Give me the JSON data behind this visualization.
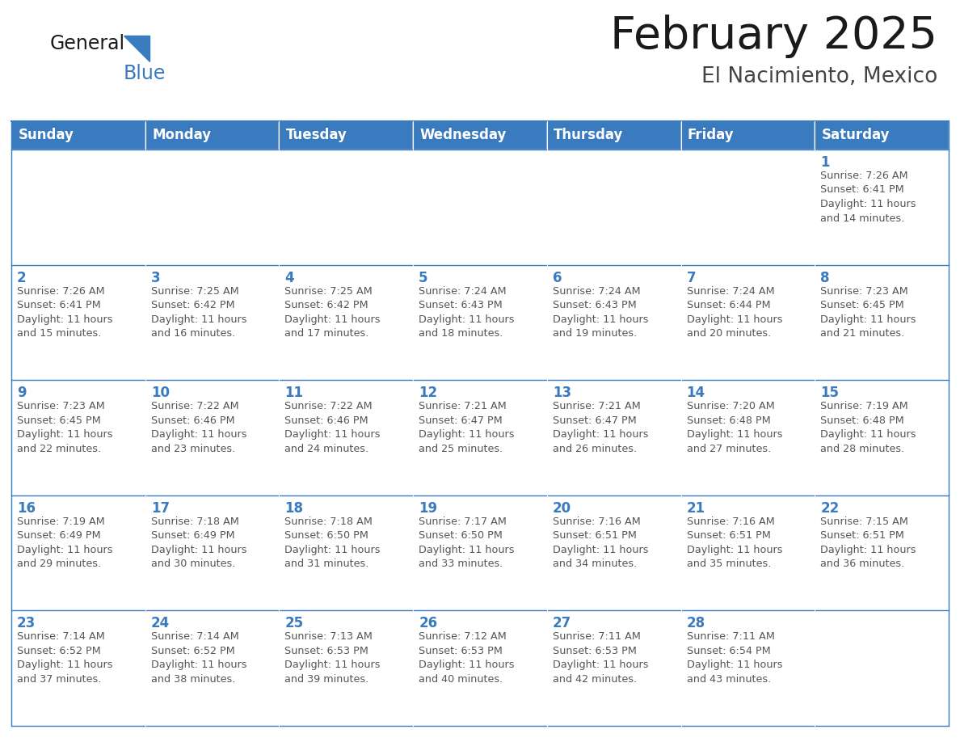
{
  "title": "February 2025",
  "subtitle": "El Nacimiento, Mexico",
  "header_bg_color": "#3a7abf",
  "header_text_color": "#ffffff",
  "cell_border_color": "#3a7abf",
  "row_separator_color": "#3a7abf",
  "day_number_color": "#3a7abf",
  "info_text_color": "#555555",
  "background_color": "#ffffff",
  "days_of_week": [
    "Sunday",
    "Monday",
    "Tuesday",
    "Wednesday",
    "Thursday",
    "Friday",
    "Saturday"
  ],
  "weeks": [
    [
      {
        "day": null,
        "info": null
      },
      {
        "day": null,
        "info": null
      },
      {
        "day": null,
        "info": null
      },
      {
        "day": null,
        "info": null
      },
      {
        "day": null,
        "info": null
      },
      {
        "day": null,
        "info": null
      },
      {
        "day": 1,
        "info": "Sunrise: 7:26 AM\nSunset: 6:41 PM\nDaylight: 11 hours\nand 14 minutes."
      }
    ],
    [
      {
        "day": 2,
        "info": "Sunrise: 7:26 AM\nSunset: 6:41 PM\nDaylight: 11 hours\nand 15 minutes."
      },
      {
        "day": 3,
        "info": "Sunrise: 7:25 AM\nSunset: 6:42 PM\nDaylight: 11 hours\nand 16 minutes."
      },
      {
        "day": 4,
        "info": "Sunrise: 7:25 AM\nSunset: 6:42 PM\nDaylight: 11 hours\nand 17 minutes."
      },
      {
        "day": 5,
        "info": "Sunrise: 7:24 AM\nSunset: 6:43 PM\nDaylight: 11 hours\nand 18 minutes."
      },
      {
        "day": 6,
        "info": "Sunrise: 7:24 AM\nSunset: 6:43 PM\nDaylight: 11 hours\nand 19 minutes."
      },
      {
        "day": 7,
        "info": "Sunrise: 7:24 AM\nSunset: 6:44 PM\nDaylight: 11 hours\nand 20 minutes."
      },
      {
        "day": 8,
        "info": "Sunrise: 7:23 AM\nSunset: 6:45 PM\nDaylight: 11 hours\nand 21 minutes."
      }
    ],
    [
      {
        "day": 9,
        "info": "Sunrise: 7:23 AM\nSunset: 6:45 PM\nDaylight: 11 hours\nand 22 minutes."
      },
      {
        "day": 10,
        "info": "Sunrise: 7:22 AM\nSunset: 6:46 PM\nDaylight: 11 hours\nand 23 minutes."
      },
      {
        "day": 11,
        "info": "Sunrise: 7:22 AM\nSunset: 6:46 PM\nDaylight: 11 hours\nand 24 minutes."
      },
      {
        "day": 12,
        "info": "Sunrise: 7:21 AM\nSunset: 6:47 PM\nDaylight: 11 hours\nand 25 minutes."
      },
      {
        "day": 13,
        "info": "Sunrise: 7:21 AM\nSunset: 6:47 PM\nDaylight: 11 hours\nand 26 minutes."
      },
      {
        "day": 14,
        "info": "Sunrise: 7:20 AM\nSunset: 6:48 PM\nDaylight: 11 hours\nand 27 minutes."
      },
      {
        "day": 15,
        "info": "Sunrise: 7:19 AM\nSunset: 6:48 PM\nDaylight: 11 hours\nand 28 minutes."
      }
    ],
    [
      {
        "day": 16,
        "info": "Sunrise: 7:19 AM\nSunset: 6:49 PM\nDaylight: 11 hours\nand 29 minutes."
      },
      {
        "day": 17,
        "info": "Sunrise: 7:18 AM\nSunset: 6:49 PM\nDaylight: 11 hours\nand 30 minutes."
      },
      {
        "day": 18,
        "info": "Sunrise: 7:18 AM\nSunset: 6:50 PM\nDaylight: 11 hours\nand 31 minutes."
      },
      {
        "day": 19,
        "info": "Sunrise: 7:17 AM\nSunset: 6:50 PM\nDaylight: 11 hours\nand 33 minutes."
      },
      {
        "day": 20,
        "info": "Sunrise: 7:16 AM\nSunset: 6:51 PM\nDaylight: 11 hours\nand 34 minutes."
      },
      {
        "day": 21,
        "info": "Sunrise: 7:16 AM\nSunset: 6:51 PM\nDaylight: 11 hours\nand 35 minutes."
      },
      {
        "day": 22,
        "info": "Sunrise: 7:15 AM\nSunset: 6:51 PM\nDaylight: 11 hours\nand 36 minutes."
      }
    ],
    [
      {
        "day": 23,
        "info": "Sunrise: 7:14 AM\nSunset: 6:52 PM\nDaylight: 11 hours\nand 37 minutes."
      },
      {
        "day": 24,
        "info": "Sunrise: 7:14 AM\nSunset: 6:52 PM\nDaylight: 11 hours\nand 38 minutes."
      },
      {
        "day": 25,
        "info": "Sunrise: 7:13 AM\nSunset: 6:53 PM\nDaylight: 11 hours\nand 39 minutes."
      },
      {
        "day": 26,
        "info": "Sunrise: 7:12 AM\nSunset: 6:53 PM\nDaylight: 11 hours\nand 40 minutes."
      },
      {
        "day": 27,
        "info": "Sunrise: 7:11 AM\nSunset: 6:53 PM\nDaylight: 11 hours\nand 42 minutes."
      },
      {
        "day": 28,
        "info": "Sunrise: 7:11 AM\nSunset: 6:54 PM\nDaylight: 11 hours\nand 43 minutes."
      },
      {
        "day": null,
        "info": null
      }
    ]
  ],
  "logo_general_color": "#1a1a1a",
  "logo_blue_color": "#3a7abf",
  "logo_triangle_color": "#3a7abf",
  "title_fontsize": 40,
  "subtitle_fontsize": 19,
  "header_fontsize": 12,
  "day_number_fontsize": 12,
  "info_fontsize": 9.2
}
